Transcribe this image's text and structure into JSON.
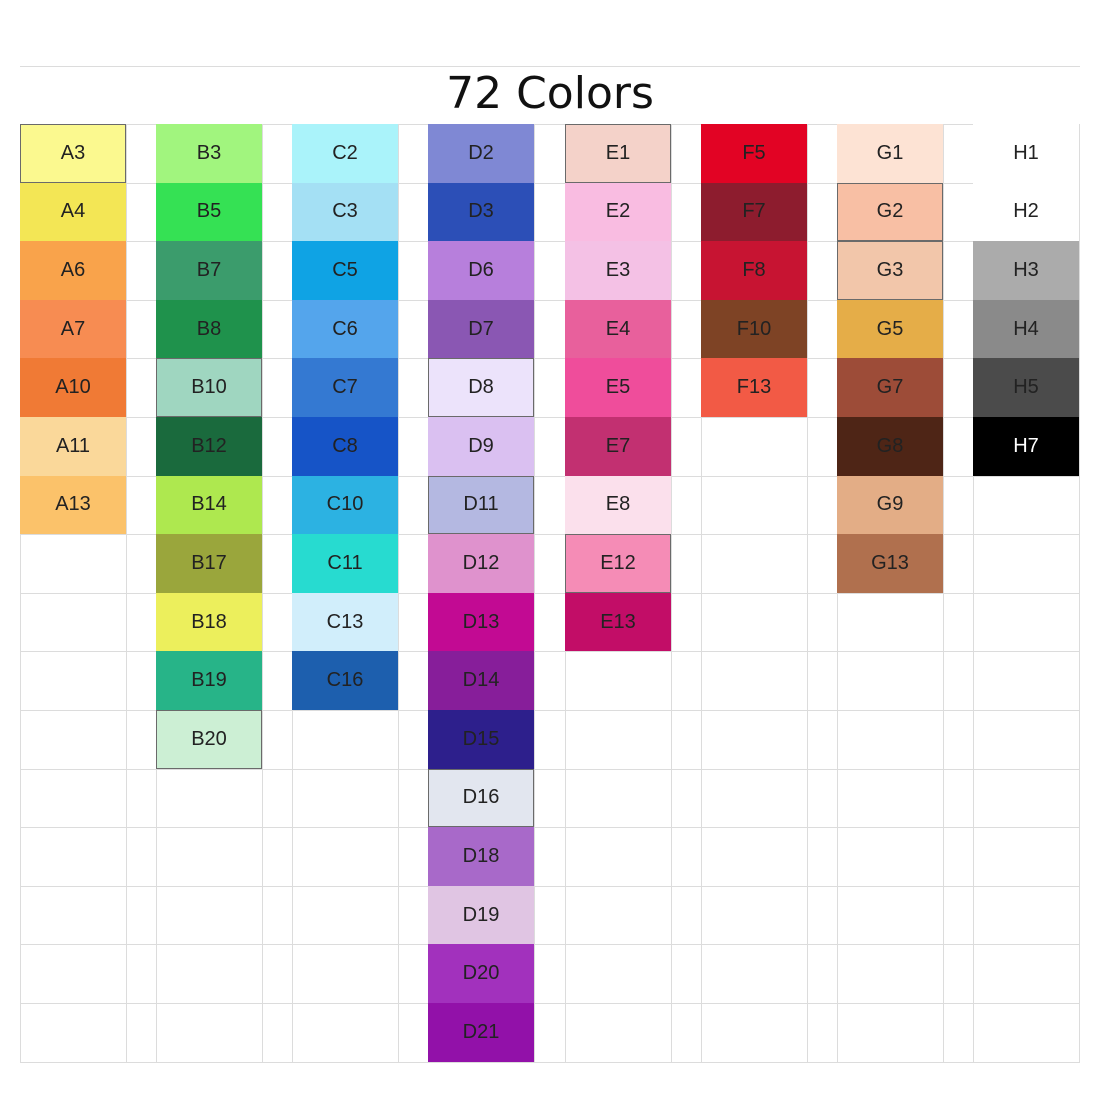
{
  "title": "72 Colors",
  "columns": [
    {
      "swatches": [
        {
          "label": "A3",
          "color": "#fbf98f",
          "text": "#222222",
          "border": true
        },
        {
          "label": "A4",
          "color": "#f3e655",
          "text": "#222222"
        },
        {
          "label": "A6",
          "color": "#f9a34b",
          "text": "#222222"
        },
        {
          "label": "A7",
          "color": "#f78c52",
          "text": "#222222"
        },
        {
          "label": "A10",
          "color": "#f07a35",
          "text": "#222222"
        },
        {
          "label": "A11",
          "color": "#fad89a",
          "text": "#222222"
        },
        {
          "label": "A13",
          "color": "#fbc26a",
          "text": "#222222"
        }
      ]
    },
    {
      "swatches": [
        {
          "label": "B3",
          "color": "#a1f57e",
          "text": "#222222"
        },
        {
          "label": "B5",
          "color": "#35e154",
          "text": "#222222"
        },
        {
          "label": "B7",
          "color": "#3b9c6c",
          "text": "#222222"
        },
        {
          "label": "B8",
          "color": "#1f924c",
          "text": "#222222"
        },
        {
          "label": "B10",
          "color": "#9fd6c0",
          "text": "#222222",
          "border": true
        },
        {
          "label": "B12",
          "color": "#1a6a3d",
          "text": "#222222"
        },
        {
          "label": "B14",
          "color": "#aee84f",
          "text": "#222222"
        },
        {
          "label": "B17",
          "color": "#9aa63c",
          "text": "#222222"
        },
        {
          "label": "B18",
          "color": "#ecef5c",
          "text": "#222222"
        },
        {
          "label": "B19",
          "color": "#27b488",
          "text": "#222222"
        },
        {
          "label": "B20",
          "color": "#ccefd4",
          "text": "#222222",
          "border": true
        }
      ]
    },
    {
      "swatches": [
        {
          "label": "C2",
          "color": "#aaf3fa",
          "text": "#222222"
        },
        {
          "label": "C3",
          "color": "#a4e0f4",
          "text": "#222222"
        },
        {
          "label": "C5",
          "color": "#0fa3e4",
          "text": "#222222"
        },
        {
          "label": "C6",
          "color": "#54a5ec",
          "text": "#222222"
        },
        {
          "label": "C7",
          "color": "#3479d2",
          "text": "#222222"
        },
        {
          "label": "C8",
          "color": "#1654c7",
          "text": "#222222"
        },
        {
          "label": "C10",
          "color": "#2cb2e2",
          "text": "#222222"
        },
        {
          "label": "C11",
          "color": "#27dbd0",
          "text": "#222222"
        },
        {
          "label": "C13",
          "color": "#d1eefb",
          "text": "#222222"
        },
        {
          "label": "C16",
          "color": "#1d5fae",
          "text": "#222222"
        }
      ]
    },
    {
      "swatches": [
        {
          "label": "D2",
          "color": "#7f88d4",
          "text": "#222222"
        },
        {
          "label": "D3",
          "color": "#2c4fb7",
          "text": "#222222"
        },
        {
          "label": "D6",
          "color": "#b77fdc",
          "text": "#222222"
        },
        {
          "label": "D7",
          "color": "#8a57b3",
          "text": "#222222"
        },
        {
          "label": "D8",
          "color": "#ece3fb",
          "text": "#222222",
          "border": true
        },
        {
          "label": "D9",
          "color": "#dac0f1",
          "text": "#222222"
        },
        {
          "label": "D11",
          "color": "#b4b8e1",
          "text": "#222222",
          "border": true
        },
        {
          "label": "D12",
          "color": "#df92cd",
          "text": "#222222"
        },
        {
          "label": "D13",
          "color": "#c20a93",
          "text": "#222222"
        },
        {
          "label": "D14",
          "color": "#871e9a",
          "text": "#222222"
        },
        {
          "label": "D15",
          "color": "#2d1f8c",
          "text": "#222222"
        },
        {
          "label": "D16",
          "color": "#e2e6ef",
          "text": "#222222",
          "border": true
        },
        {
          "label": "D18",
          "color": "#a869c9",
          "text": "#222222"
        },
        {
          "label": "D19",
          "color": "#e0c5e3",
          "text": "#222222"
        },
        {
          "label": "D20",
          "color": "#a231bd",
          "text": "#222222"
        },
        {
          "label": "D21",
          "color": "#9211a9",
          "text": "#222222"
        }
      ]
    },
    {
      "swatches": [
        {
          "label": "E1",
          "color": "#f4d2c9",
          "text": "#222222",
          "border": true
        },
        {
          "label": "E2",
          "color": "#f9bce1",
          "text": "#222222"
        },
        {
          "label": "E3",
          "color": "#f4c1e5",
          "text": "#222222"
        },
        {
          "label": "E4",
          "color": "#e8609c",
          "text": "#222222"
        },
        {
          "label": "E5",
          "color": "#ef4d9b",
          "text": "#222222"
        },
        {
          "label": "E7",
          "color": "#c23071",
          "text": "#222222"
        },
        {
          "label": "E8",
          "color": "#fbe0ec",
          "text": "#222222"
        },
        {
          "label": "E12",
          "color": "#f58cb6",
          "text": "#222222",
          "border": true
        },
        {
          "label": "E13",
          "color": "#c20d67",
          "text": "#222222"
        }
      ]
    },
    {
      "swatches": [
        {
          "label": "F5",
          "color": "#e20324",
          "text": "#222222"
        },
        {
          "label": "F7",
          "color": "#8d1c2e",
          "text": "#222222"
        },
        {
          "label": "F8",
          "color": "#c71432",
          "text": "#222222"
        },
        {
          "label": "F10",
          "color": "#7e4325",
          "text": "#222222"
        },
        {
          "label": "F13",
          "color": "#f25a45",
          "text": "#222222"
        }
      ]
    },
    {
      "swatches": [
        {
          "label": "G1",
          "color": "#fde3d4",
          "text": "#222222"
        },
        {
          "label": "G2",
          "color": "#f8bfa4",
          "text": "#222222",
          "border": true
        },
        {
          "label": "G3",
          "color": "#f2c6aa",
          "text": "#222222",
          "border": true
        },
        {
          "label": "G5",
          "color": "#e5ad48",
          "text": "#222222"
        },
        {
          "label": "G7",
          "color": "#9d4c38",
          "text": "#222222"
        },
        {
          "label": "G8",
          "color": "#4e2516",
          "text": "#222222"
        },
        {
          "label": "G9",
          "color": "#e3ad86",
          "text": "#222222"
        },
        {
          "label": "G13",
          "color": "#b0704e",
          "text": "#222222"
        }
      ]
    },
    {
      "swatches": [
        {
          "label": "H1",
          "color": "#ffffff",
          "text": "#222222"
        },
        {
          "label": "H2",
          "color": "#ffffff",
          "text": "#222222"
        },
        {
          "label": "H3",
          "color": "#ababab",
          "text": "#222222"
        },
        {
          "label": "H4",
          "color": "#8a8a8a",
          "text": "#222222"
        },
        {
          "label": "H5",
          "color": "#4b4b4b",
          "text": "#222222"
        },
        {
          "label": "H7",
          "color": "#000000",
          "text": "#ffffff"
        }
      ]
    }
  ]
}
